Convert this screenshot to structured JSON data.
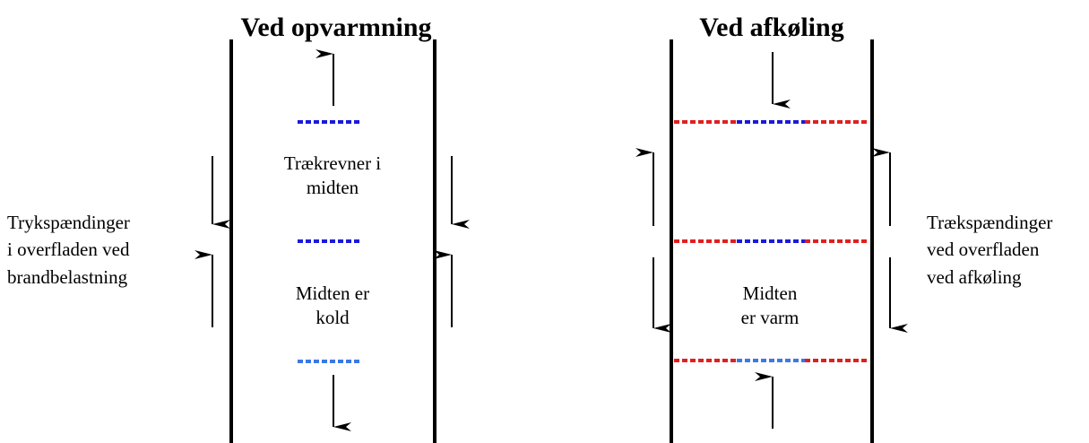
{
  "left_panel": {
    "title": "Ved opvarmning",
    "center_label_top": [
      "Trækrevner i",
      "midten"
    ],
    "center_label_bottom": [
      "Midten er",
      "kold"
    ],
    "side_label": [
      "Trykspændinger",
      "i overfladen ved",
      "brandbelastning"
    ]
  },
  "right_panel": {
    "title": "Ved afkøling",
    "center_label": [
      "Midten",
      "er varm"
    ],
    "side_label": [
      "Trækspændinger",
      "ved overfladen",
      "ved afkøling"
    ]
  },
  "colors": {
    "wall": "#000000",
    "dash_blue": "#1a1adc",
    "dash_lightblue": "#3c78e6",
    "dash_red": "#e02020",
    "arrow": "#000000"
  }
}
